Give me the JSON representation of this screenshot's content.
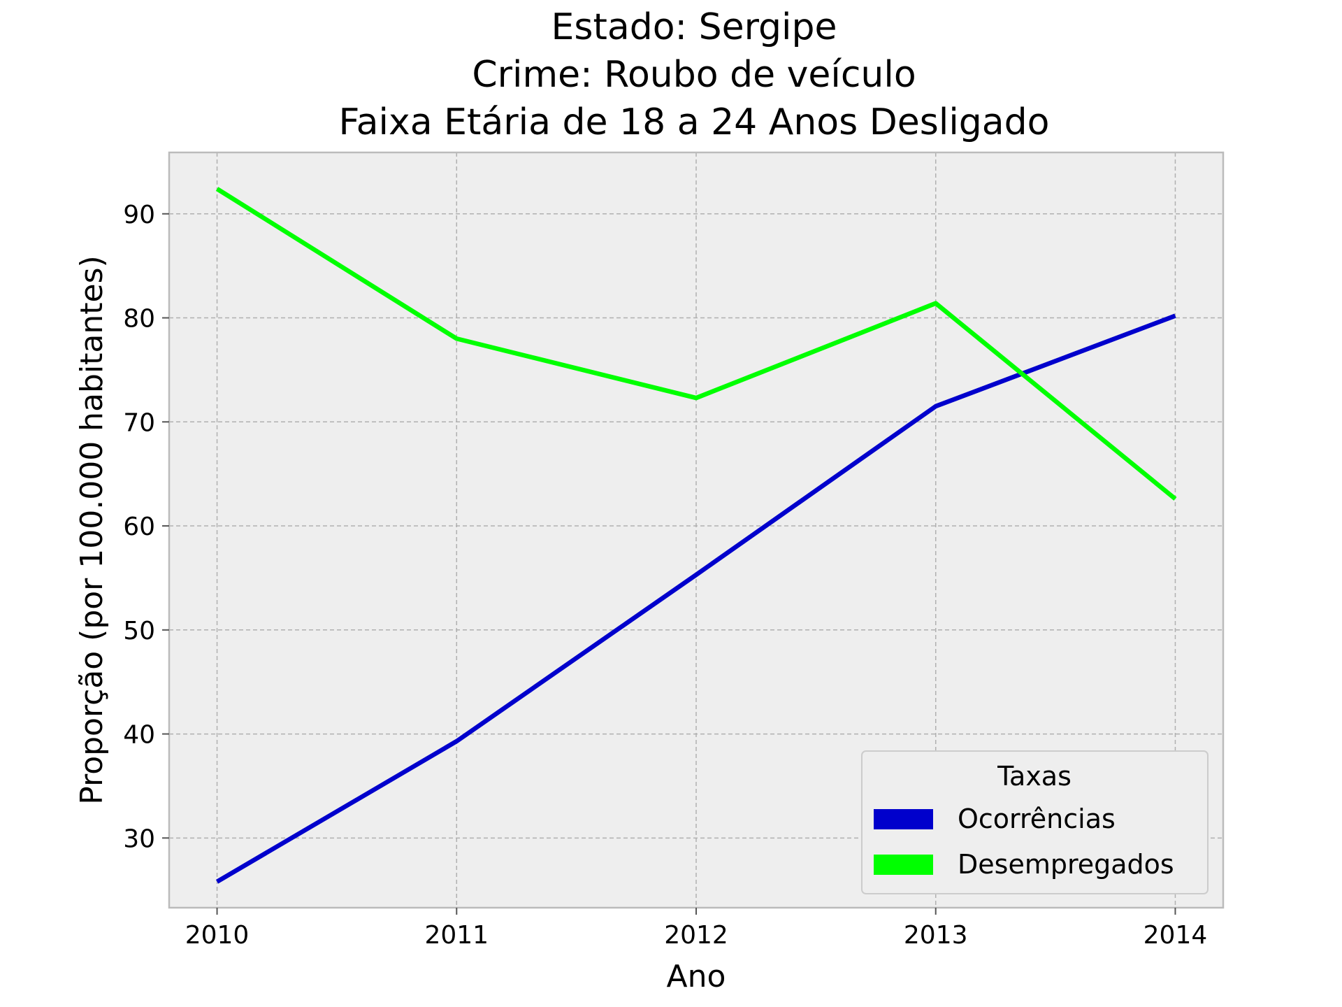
{
  "chart_data": {
    "type": "line",
    "title_lines": [
      "Estado: Sergipe",
      "Crime: Roubo de veículo",
      "Faixa Etária de 18 a 24 Anos   Desligado"
    ],
    "xlabel": "Ano",
    "ylabel": "Proporção (por 100.000 habitantes)",
    "x": [
      2010,
      2011,
      2012,
      2013,
      2014
    ],
    "x_tick_labels": [
      "2010",
      "2011",
      "2012",
      "2013",
      "2014"
    ],
    "y_ticks": [
      30,
      40,
      50,
      60,
      70,
      80,
      90
    ],
    "y_tick_labels": [
      "30",
      "40",
      "50",
      "60",
      "70",
      "80",
      "90"
    ],
    "xlim": [
      2009.8,
      2014.2
    ],
    "ylim": [
      23.3,
      95.9
    ],
    "grid": true,
    "legend": {
      "title": "Taxas",
      "placement": "lower-right"
    },
    "series": [
      {
        "name": "Ocorrências",
        "color": "#0000cc",
        "values": [
          25.8,
          39.3,
          55.3,
          71.5,
          80.2
        ]
      },
      {
        "name": "Desempregados",
        "color": "#00ff00",
        "values": [
          92.4,
          78.0,
          72.3,
          81.4,
          62.6
        ]
      }
    ]
  }
}
